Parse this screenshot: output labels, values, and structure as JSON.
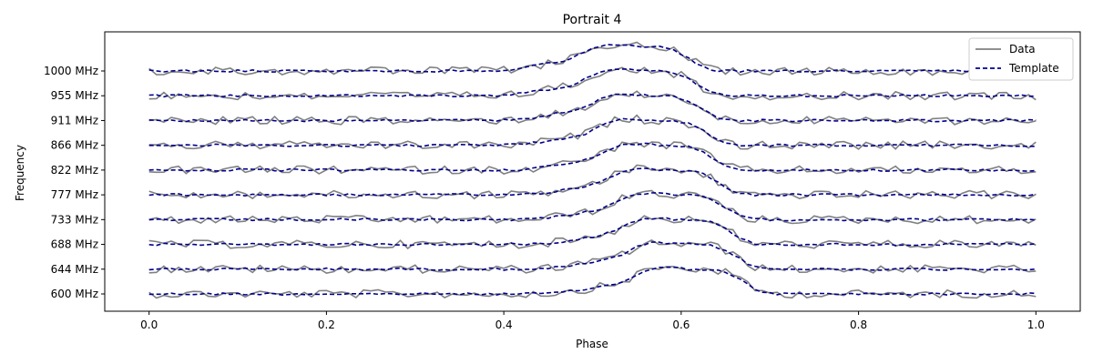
{
  "chart_data": {
    "type": "line",
    "title": "Portrait 4",
    "xlabel": "Phase",
    "ylabel": "Frequency",
    "xlim": [
      -0.05,
      1.05
    ],
    "x_ticks": [
      0.0,
      0.2,
      0.4,
      0.6,
      0.8,
      1.0
    ],
    "x_tick_labels": [
      "0.0",
      "0.2",
      "0.4",
      "0.6",
      "0.8",
      "1.0"
    ],
    "y_tick_labels": [
      "600 MHz",
      "644 MHz",
      "688 MHz",
      "733 MHz",
      "777 MHz",
      "822 MHz",
      "866 MHz",
      "911 MHz",
      "955 MHz",
      "1000 MHz"
    ],
    "legend": {
      "placement": "top-right",
      "entries": [
        {
          "label": "Data",
          "color": "#808080",
          "style": "solid"
        },
        {
          "label": "Template",
          "color": "#00008b",
          "style": "dashed"
        }
      ]
    },
    "grid": false,
    "pulse_shape": {
      "description_values": "template profile: baseline plus pulse peaking near phase 0.55 at 1000 MHz drifting to ~0.61 at 600 MHz",
      "peak_phase_high": 0.55,
      "peak_phase_low": 0.61,
      "peak_amplitude": 1.0,
      "noise_amplitude": 0.3
    },
    "series_colors": {
      "data": "#808080",
      "template": "#00008b"
    }
  }
}
